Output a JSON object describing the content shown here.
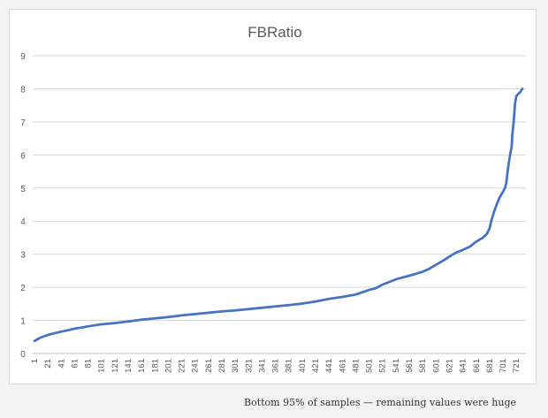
{
  "chart_data": {
    "type": "line",
    "title": "FBRatio",
    "xlabel": "",
    "ylabel": "",
    "ylim": [
      0,
      9
    ],
    "yticks": [
      0,
      1,
      2,
      3,
      4,
      5,
      6,
      7,
      8,
      9
    ],
    "xlim": [
      1,
      730
    ],
    "xticks": [
      1,
      21,
      41,
      61,
      81,
      101,
      121,
      141,
      161,
      181,
      201,
      221,
      241,
      261,
      281,
      301,
      321,
      341,
      361,
      381,
      401,
      421,
      441,
      461,
      481,
      501,
      521,
      541,
      561,
      581,
      601,
      621,
      641,
      661,
      681,
      701,
      721
    ],
    "grid": "horizontal",
    "legend": "none",
    "series": [
      {
        "color": "#4472c4",
        "points": [
          [
            1,
            0.38
          ],
          [
            10,
            0.48
          ],
          [
            21,
            0.56
          ],
          [
            30,
            0.61
          ],
          [
            41,
            0.66
          ],
          [
            50,
            0.7
          ],
          [
            61,
            0.75
          ],
          [
            70,
            0.78
          ],
          [
            81,
            0.82
          ],
          [
            90,
            0.85
          ],
          [
            101,
            0.88
          ],
          [
            121,
            0.92
          ],
          [
            141,
            0.97
          ],
          [
            161,
            1.02
          ],
          [
            181,
            1.06
          ],
          [
            201,
            1.1
          ],
          [
            221,
            1.15
          ],
          [
            241,
            1.19
          ],
          [
            261,
            1.23
          ],
          [
            281,
            1.27
          ],
          [
            301,
            1.3
          ],
          [
            321,
            1.34
          ],
          [
            341,
            1.38
          ],
          [
            361,
            1.42
          ],
          [
            381,
            1.46
          ],
          [
            401,
            1.51
          ],
          [
            421,
            1.57
          ],
          [
            441,
            1.65
          ],
          [
            461,
            1.71
          ],
          [
            481,
            1.78
          ],
          [
            491,
            1.85
          ],
          [
            501,
            1.92
          ],
          [
            511,
            1.97
          ],
          [
            521,
            2.08
          ],
          [
            531,
            2.16
          ],
          [
            541,
            2.24
          ],
          [
            551,
            2.3
          ],
          [
            561,
            2.35
          ],
          [
            571,
            2.41
          ],
          [
            581,
            2.47
          ],
          [
            591,
            2.56
          ],
          [
            601,
            2.68
          ],
          [
            611,
            2.8
          ],
          [
            621,
            2.93
          ],
          [
            631,
            3.05
          ],
          [
            641,
            3.13
          ],
          [
            651,
            3.22
          ],
          [
            661,
            3.38
          ],
          [
            671,
            3.5
          ],
          [
            677,
            3.62
          ],
          [
            681,
            3.78
          ],
          [
            684,
            4.05
          ],
          [
            688,
            4.3
          ],
          [
            692,
            4.52
          ],
          [
            696,
            4.72
          ],
          [
            700,
            4.85
          ],
          [
            704,
            5.0
          ],
          [
            706,
            5.15
          ],
          [
            708,
            5.5
          ],
          [
            710,
            5.8
          ],
          [
            712,
            6.05
          ],
          [
            714,
            6.25
          ],
          [
            715,
            6.6
          ],
          [
            717,
            7.0
          ],
          [
            719,
            7.55
          ],
          [
            721,
            7.78
          ],
          [
            724,
            7.85
          ],
          [
            727,
            7.9
          ],
          [
            730,
            8.0
          ]
        ]
      }
    ]
  },
  "caption": "Bottom 95% of samples — remaining values were huge"
}
